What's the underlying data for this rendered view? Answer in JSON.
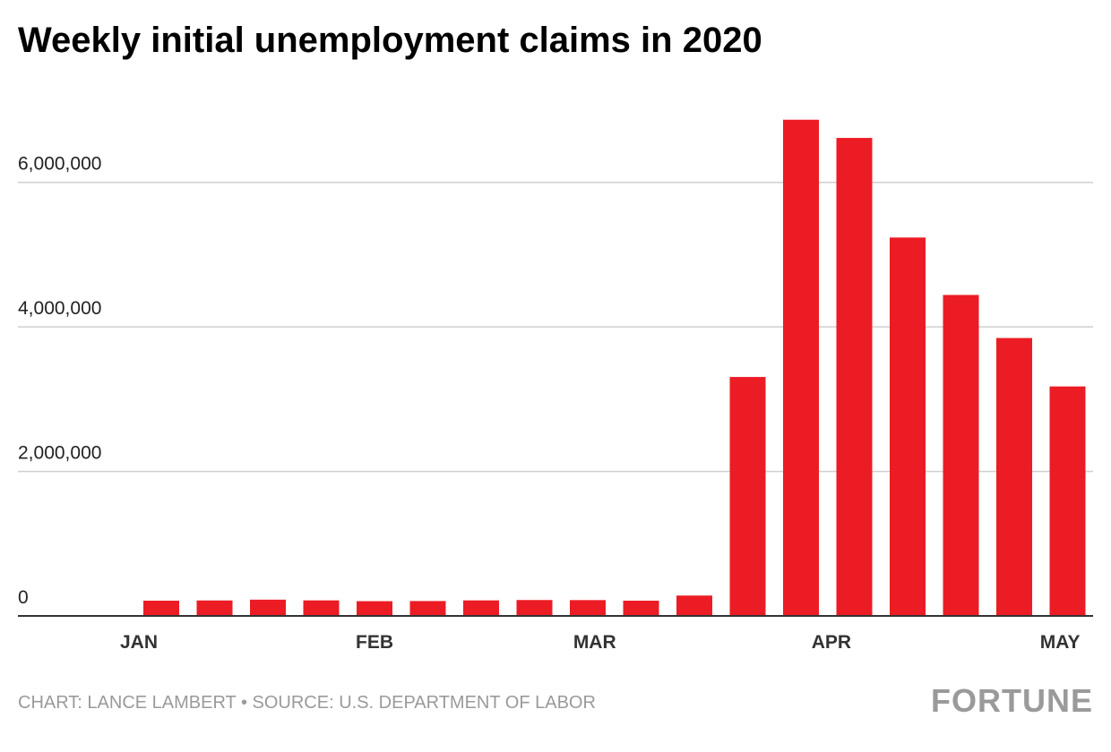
{
  "chart_data": {
    "type": "bar",
    "title": "Weekly initial unemployment claims in 2020",
    "categories": [
      null,
      null,
      null,
      null,
      null,
      null,
      null,
      null,
      null,
      null,
      null,
      null,
      null,
      null,
      null,
      null,
      null,
      null
    ],
    "values": [
      211000,
      214000,
      225000,
      215000,
      204000,
      206000,
      215000,
      220000,
      219000,
      211000,
      282000,
      3307000,
      6867000,
      6615000,
      5237000,
      4442000,
      3846000,
      3176000
    ],
    "color": "#ec1c24",
    "ylim": [
      0,
      7000000
    ],
    "yticks": [
      0,
      {
        "value": 2000000,
        "label": "2,000,000"
      },
      {
        "value": 4000000,
        "label": "4,000,000"
      },
      {
        "value": 6000000,
        "label": "6,000,000"
      }
    ],
    "xticks": [
      {
        "value": -0.42,
        "label": "JAN"
      },
      {
        "value": 4.0,
        "label": "FEB"
      },
      {
        "value": 8.13,
        "label": "MAR"
      },
      {
        "value": 12.57,
        "label": "APR"
      },
      {
        "value": 16.86,
        "label": "MAY"
      }
    ],
    "grid": true,
    "source": "CHART: LANCE LAMBERT • SOURCE: U.S. DEPARTMENT OF LABOR",
    "brand": "FORTUNE"
  }
}
